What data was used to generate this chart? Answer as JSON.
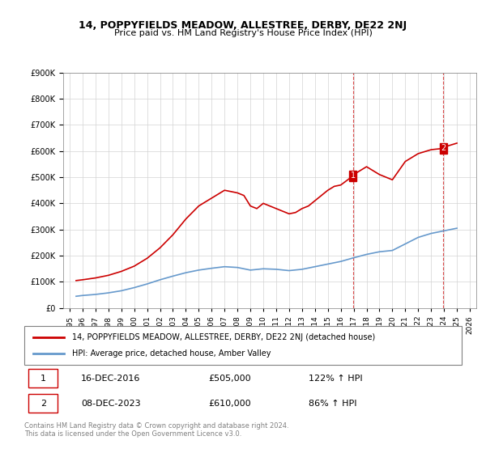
{
  "title": "14, POPPYFIELDS MEADOW, ALLESTREE, DERBY, DE22 2NJ",
  "subtitle": "Price paid vs. HM Land Registry's House Price Index (HPI)",
  "legend_line1": "14, POPPYFIELDS MEADOW, ALLESTREE, DERBY, DE22 2NJ (detached house)",
  "legend_line2": "HPI: Average price, detached house, Amber Valley",
  "red_color": "#cc0000",
  "blue_color": "#6699cc",
  "marker1_date": "16-DEC-2016",
  "marker1_price": 505000,
  "marker1_label": "122% ↑ HPI",
  "marker2_date": "08-DEC-2023",
  "marker2_price": 610000,
  "marker2_label": "86% ↑ HPI",
  "footer": "Contains HM Land Registry data © Crown copyright and database right 2024.\nThis data is licensed under the Open Government Licence v3.0.",
  "ylim": [
    0,
    900000
  ],
  "yticks": [
    0,
    100000,
    200000,
    300000,
    400000,
    500000,
    600000,
    700000,
    800000,
    900000
  ],
  "red_years": [
    1995.5,
    1996,
    1997,
    1998,
    1999,
    2000,
    2001,
    2002,
    2003,
    2004,
    2005,
    2006,
    2007,
    2008,
    2008.5,
    2009,
    2009.5,
    2010,
    2010.5,
    2011,
    2011.5,
    2012,
    2012.5,
    2013,
    2013.5,
    2014,
    2014.5,
    2015,
    2015.5,
    2016.0,
    2016.95,
    2017,
    2018,
    2019,
    2020,
    2021,
    2022,
    2023.0,
    2023.95,
    2024,
    2025
  ],
  "red_values": [
    105000,
    108000,
    115000,
    125000,
    140000,
    160000,
    190000,
    230000,
    280000,
    340000,
    390000,
    420000,
    450000,
    440000,
    430000,
    390000,
    380000,
    400000,
    390000,
    380000,
    370000,
    360000,
    365000,
    380000,
    390000,
    410000,
    430000,
    450000,
    465000,
    470000,
    505000,
    510000,
    540000,
    510000,
    490000,
    560000,
    590000,
    605000,
    610000,
    615000,
    630000
  ],
  "blue_years": [
    1995.5,
    1996,
    1997,
    1998,
    1999,
    2000,
    2001,
    2002,
    2003,
    2004,
    2005,
    2006,
    2007,
    2008,
    2009,
    2010,
    2011,
    2012,
    2013,
    2014,
    2015,
    2016,
    2017,
    2018,
    2019,
    2020,
    2021,
    2022,
    2023,
    2024,
    2025
  ],
  "blue_values": [
    45000,
    48000,
    52000,
    58000,
    66000,
    78000,
    92000,
    108000,
    122000,
    135000,
    145000,
    152000,
    158000,
    155000,
    145000,
    150000,
    148000,
    143000,
    148000,
    158000,
    168000,
    178000,
    192000,
    205000,
    215000,
    220000,
    245000,
    270000,
    285000,
    295000,
    305000
  ],
  "marker1_x": 2016.95,
  "marker2_x": 2023.95
}
